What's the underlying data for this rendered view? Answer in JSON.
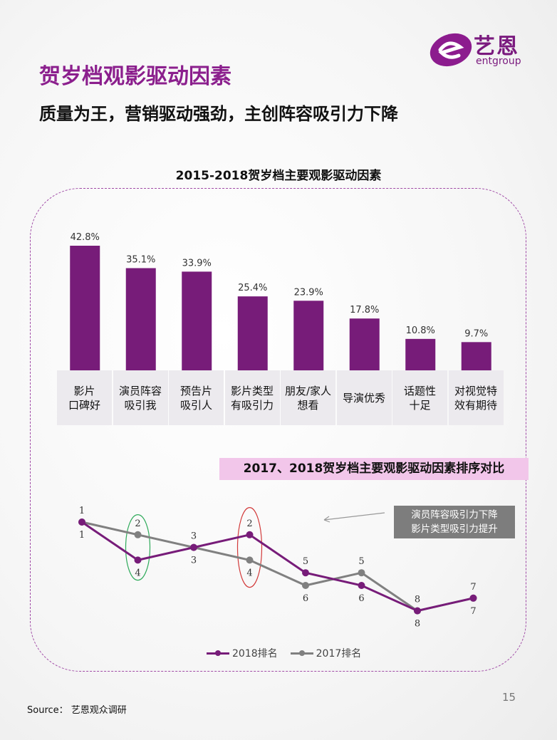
{
  "logo": {
    "text": "艺恩",
    "sub": "entgroup",
    "brand_color": "#7a1a7e"
  },
  "header": {
    "title": "贺岁档观影驱动因素",
    "subtitle": "质量为王，营销驱动强劲，主创阵容吸引力下降"
  },
  "chart_data": [
    {
      "type": "bar",
      "title": "2015-2018贺岁档主要观影驱动因素",
      "categories": [
        "影片\n口碑好",
        "演员阵容\n吸引我",
        "预告片\n吸引人",
        "影片类型\n有吸引力",
        "朋友/家人\n想看",
        "导演优秀",
        "话题性\n十足",
        "对视觉特\n效有期待"
      ],
      "values": [
        42.8,
        35.1,
        33.9,
        25.4,
        23.9,
        17.8,
        10.8,
        9.7
      ],
      "labels": [
        "42.8%",
        "35.1%",
        "33.9%",
        "25.4%",
        "23.9%",
        "17.8%",
        "10.8%",
        "9.7%"
      ],
      "ylim": [
        0,
        45
      ],
      "color": "#771c79"
    },
    {
      "type": "line",
      "title": "2017、2018贺岁档主要观影驱动因素排序对比",
      "x": [
        1,
        2,
        3,
        4,
        5,
        6,
        7,
        8
      ],
      "series": [
        {
          "name": "2018排名",
          "values": [
            1,
            4,
            3,
            2,
            5,
            6,
            8,
            7
          ],
          "color": "#771c79"
        },
        {
          "name": "2017排名",
          "values": [
            1,
            2,
            3,
            4,
            6,
            5,
            8,
            7
          ],
          "color": "#808080"
        }
      ],
      "ylim": [
        1,
        8
      ],
      "annotation": "演员阵容吸引力下降\n影片类型吸引力提升",
      "highlight_colors": [
        "#2eaa5a",
        "#d23a3a"
      ]
    }
  ],
  "page_number": "15",
  "source": "Source： 艺恩观众调研"
}
